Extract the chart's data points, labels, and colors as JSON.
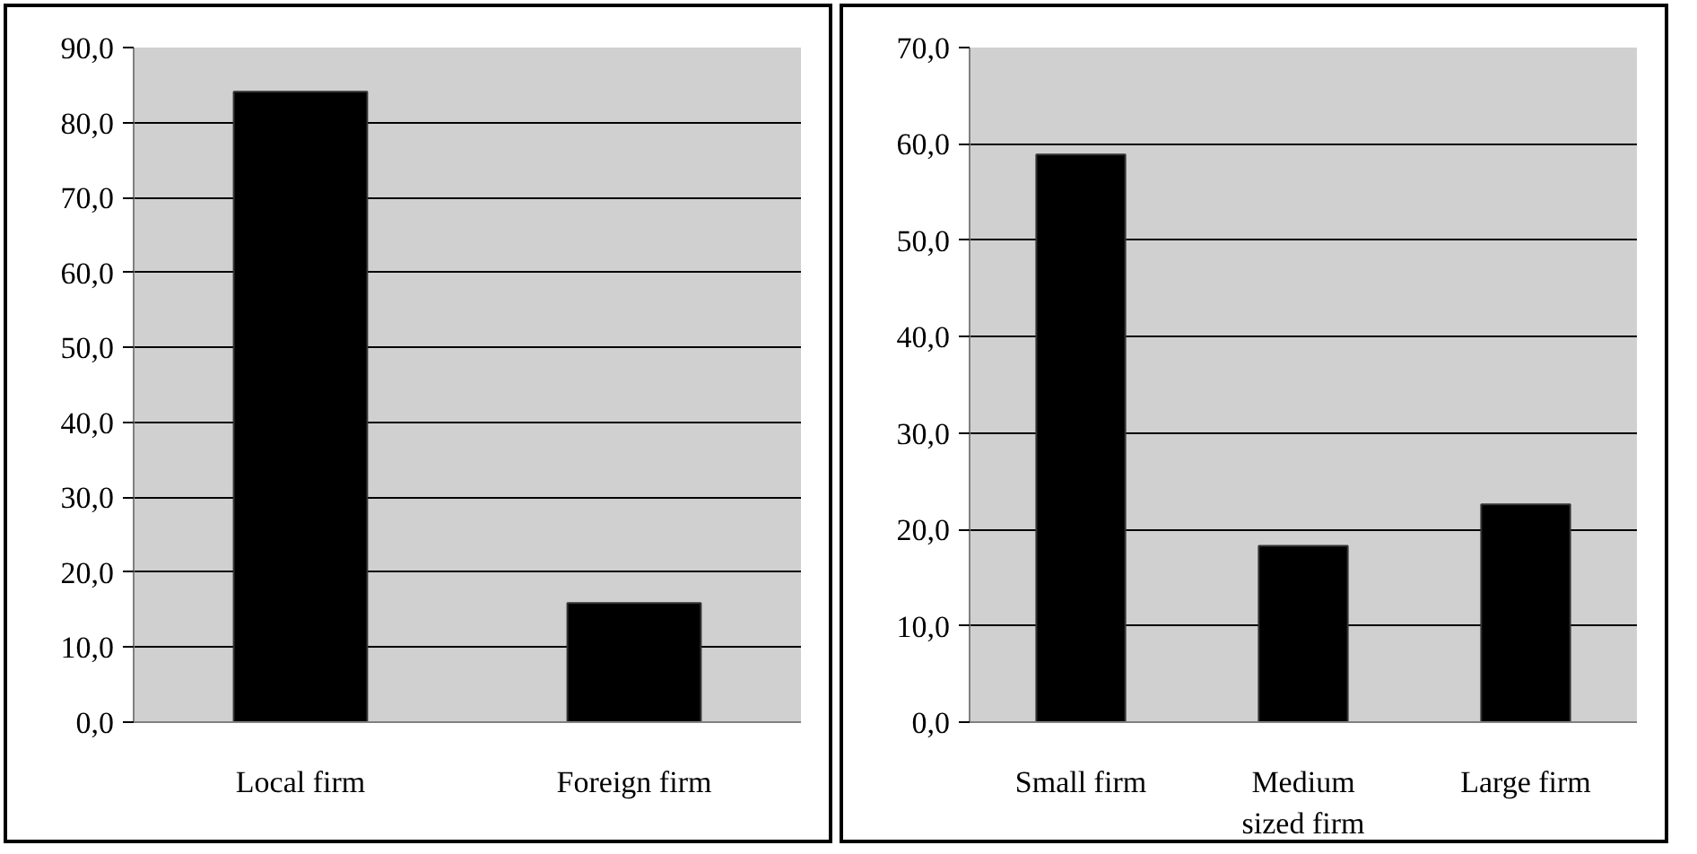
{
  "chart_data": [
    {
      "type": "bar",
      "categories": [
        "Local firm",
        "Foreign firm"
      ],
      "values": [
        84.1,
        15.9
      ],
      "color": "#000000",
      "ylim": [
        0,
        90
      ],
      "yticks": [
        {
          "value": 0,
          "label": "0,0"
        },
        {
          "value": 10,
          "label": "10,0"
        },
        {
          "value": 20,
          "label": "20,0"
        },
        {
          "value": 30,
          "label": "30,0"
        },
        {
          "value": 40,
          "label": "40,0"
        },
        {
          "value": 50,
          "label": "50,0"
        },
        {
          "value": 60,
          "label": "60,0"
        },
        {
          "value": 70,
          "label": "70,0"
        },
        {
          "value": 80,
          "label": "80,0"
        },
        {
          "value": 90,
          "label": "90,0"
        }
      ],
      "grid": "y"
    },
    {
      "type": "bar",
      "categories": [
        "Small firm",
        "Medium sized firm",
        "Large firm"
      ],
      "values": [
        58.9,
        18.3,
        22.6
      ],
      "color": "#000000",
      "ylim": [
        0,
        70
      ],
      "yticks": [
        {
          "value": 0,
          "label": "0,0"
        },
        {
          "value": 10,
          "label": "10,0"
        },
        {
          "value": 20,
          "label": "20,0"
        },
        {
          "value": 30,
          "label": "30,0"
        },
        {
          "value": 40,
          "label": "40,0"
        },
        {
          "value": 50,
          "label": "50,0"
        },
        {
          "value": 60,
          "label": "60,0"
        },
        {
          "value": 70,
          "label": "70,0"
        }
      ],
      "grid": "y"
    }
  ]
}
